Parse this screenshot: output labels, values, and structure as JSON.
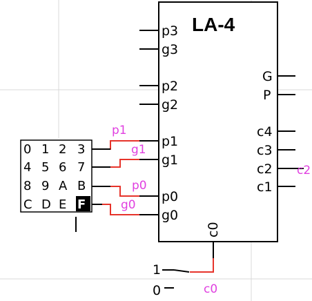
{
  "colors": {
    "wire": "#000000",
    "signal_wire": "#e6332a",
    "signal_label": "#e040e0",
    "grid": "#d8d8d8",
    "selected_key_bg": "#000000"
  },
  "chip": {
    "title": "LA-4",
    "left_pins": [
      "p3",
      "g3",
      "p2",
      "g2",
      "p1",
      "g1",
      "p0",
      "g0"
    ],
    "right_pins": [
      "G",
      "P",
      "c4",
      "c3",
      "c2",
      "c1"
    ],
    "bottom_pin": "c0"
  },
  "keypad": {
    "rows": [
      [
        "0",
        "1",
        "2",
        "3"
      ],
      [
        "4",
        "5",
        "6",
        "7"
      ],
      [
        "8",
        "9",
        "A",
        "B"
      ],
      [
        "C",
        "D",
        "E",
        "F"
      ]
    ],
    "selected_key": "F"
  },
  "signal_labels": {
    "p1": "p1",
    "g1": "g1",
    "p0": "p0",
    "g0": "g0",
    "c2": "c2",
    "c0": "c0"
  },
  "switch": {
    "on_label": "1",
    "off_label": "0"
  }
}
